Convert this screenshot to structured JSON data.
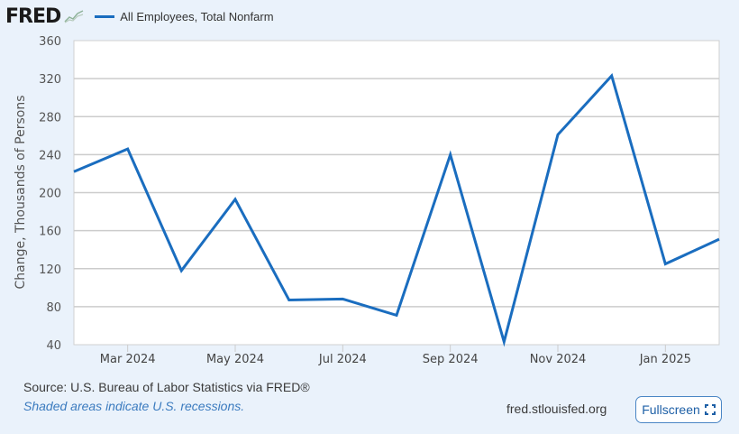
{
  "header": {
    "logo_text": "FRED",
    "legend_label": "All Employees, Total Nonfarm"
  },
  "footer": {
    "source": "Source: U.S. Bureau of Labor Statistics via FRED®",
    "note": "Shaded areas indicate U.S. recessions.",
    "site": "fred.stlouisfed.org",
    "fullscreen_label": "Fullscreen",
    "fullscreen_icon": "fullscreen-icon"
  },
  "colors": {
    "line": "#1a6dbf",
    "background": "#eaf2fb",
    "plot_background": "#ffffff",
    "grid": "#cccccc"
  },
  "chart_data": {
    "type": "line",
    "title": "",
    "xlabel": "",
    "ylabel": "Change, Thousands of Persons",
    "ylim": [
      40,
      360
    ],
    "yticks": [
      40,
      80,
      120,
      160,
      200,
      240,
      280,
      320,
      360
    ],
    "xtick_labels": [
      "Mar 2024",
      "May 2024",
      "Jul 2024",
      "Sep 2024",
      "Nov 2024",
      "Jan 2025"
    ],
    "grid": true,
    "legend_position": "top-left",
    "x": [
      "Feb 2024",
      "Mar 2024",
      "Apr 2024",
      "May 2024",
      "Jun 2024",
      "Jul 2024",
      "Aug 2024",
      "Sep 2024",
      "Oct 2024",
      "Nov 2024",
      "Dec 2024",
      "Jan 2025",
      "Feb 2025"
    ],
    "series": [
      {
        "name": "All Employees, Total Nonfarm",
        "values": [
          222,
          246,
          118,
          193,
          87,
          88,
          71,
          240,
          43,
          261,
          323,
          125,
          151
        ]
      }
    ]
  }
}
